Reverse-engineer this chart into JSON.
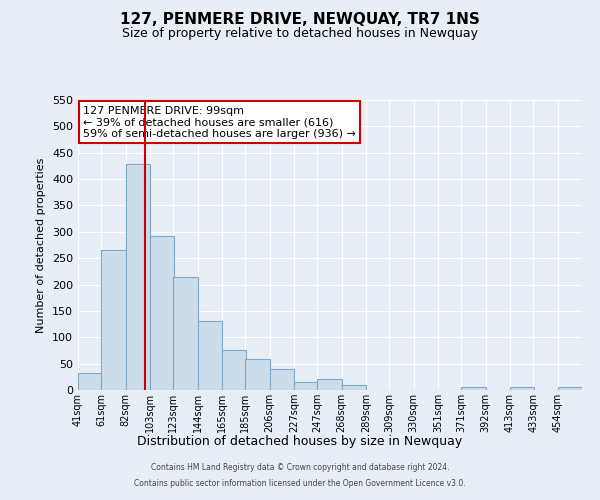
{
  "title": "127, PENMERE DRIVE, NEWQUAY, TR7 1NS",
  "subtitle": "Size of property relative to detached houses in Newquay",
  "xlabel": "Distribution of detached houses by size in Newquay",
  "ylabel": "Number of detached properties",
  "bar_labels": [
    "41sqm",
    "61sqm",
    "82sqm",
    "103sqm",
    "123sqm",
    "144sqm",
    "165sqm",
    "185sqm",
    "206sqm",
    "227sqm",
    "247sqm",
    "268sqm",
    "289sqm",
    "309sqm",
    "330sqm",
    "351sqm",
    "371sqm",
    "392sqm",
    "413sqm",
    "433sqm",
    "454sqm"
  ],
  "bar_values": [
    32,
    265,
    428,
    293,
    215,
    130,
    76,
    59,
    40,
    15,
    21,
    10,
    0,
    0,
    0,
    0,
    5,
    0,
    5,
    0,
    5
  ],
  "bar_left_edges": [
    41,
    61,
    82,
    103,
    123,
    144,
    165,
    185,
    206,
    227,
    247,
    268,
    289,
    309,
    330,
    351,
    371,
    392,
    413,
    433,
    454
  ],
  "bin_width": 21,
  "bar_color": "#cddceb",
  "bar_edge_color": "#7aaac8",
  "property_line_x": 99,
  "annotation_text_line1": "127 PENMERE DRIVE: 99sqm",
  "annotation_text_line2": "← 39% of detached houses are smaller (616)",
  "annotation_text_line3": "59% of semi-detached houses are larger (936) →",
  "annotation_box_facecolor": "#ffffff",
  "annotation_box_edgecolor": "#cc0000",
  "red_line_color": "#cc0000",
  "ylim": [
    0,
    550
  ],
  "yticks": [
    0,
    50,
    100,
    150,
    200,
    250,
    300,
    350,
    400,
    450,
    500,
    550
  ],
  "background_color": "#e8eef5",
  "grid_color": "#ffffff",
  "footer_line1": "Contains HM Land Registry data © Crown copyright and database right 2024.",
  "footer_line2": "Contains public sector information licensed under the Open Government Licence v3.0."
}
